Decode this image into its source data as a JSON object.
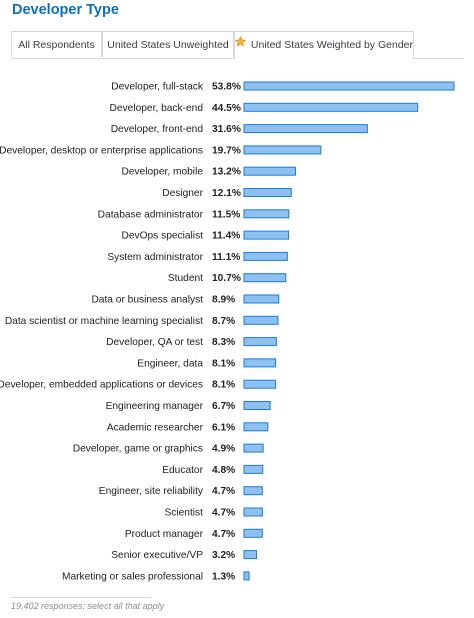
{
  "title": "Developer Type",
  "tabs": [
    {
      "label": "All Respondents",
      "active": false
    },
    {
      "label": "United States Unweighted",
      "active": false
    },
    {
      "label": "United States Weighted by Gender",
      "active": true,
      "icon": "star-icon"
    }
  ],
  "colors": {
    "title": "#0c6fbd",
    "bar_fill": "#8fc1f0",
    "bar_stroke": "#1a7be0",
    "star": "#f4b42d"
  },
  "chart_data": {
    "type": "bar",
    "orientation": "horizontal",
    "value_suffix": "%",
    "categories": [
      "Developer, full-stack",
      "Developer, back-end",
      "Developer, front-end",
      "Developer, desktop or enterprise applications",
      "Developer, mobile",
      "Designer",
      "Database administrator",
      "DevOps specialist",
      "System administrator",
      "Student",
      "Data or business analyst",
      "Data scientist or machine learning specialist",
      "Developer, QA or test",
      "Engineer, data",
      "Developer, embedded applications or devices",
      "Engineering manager",
      "Academic researcher",
      "Developer, game or graphics",
      "Educator",
      "Engineer, site reliability",
      "Scientist",
      "Product manager",
      "Senior executive/VP",
      "Marketing or sales professional"
    ],
    "values": [
      53.8,
      44.5,
      31.6,
      19.7,
      13.2,
      12.1,
      11.5,
      11.4,
      11.1,
      10.7,
      8.9,
      8.7,
      8.3,
      8.1,
      8.1,
      6.7,
      6.1,
      4.9,
      4.8,
      4.7,
      4.7,
      4.7,
      3.2,
      1.3
    ],
    "value_labels": [
      "53.8%",
      "44.5%",
      "31.6%",
      "19.7%",
      "13.2%",
      "12.1%",
      "11.5%",
      "11.4%",
      "11.1%",
      "10.7%",
      "8.9%",
      "8.7%",
      "8.3%",
      "8.1%",
      "8.1%",
      "6.7%",
      "6.1%",
      "4.9%",
      "4.8%",
      "4.7%",
      "4.7%",
      "4.7%",
      "3.2%",
      "1.3%"
    ],
    "xlim": [
      0,
      53.8
    ],
    "grid": false,
    "legend": "none"
  },
  "footnote": "19,402 responses; select all that apply"
}
